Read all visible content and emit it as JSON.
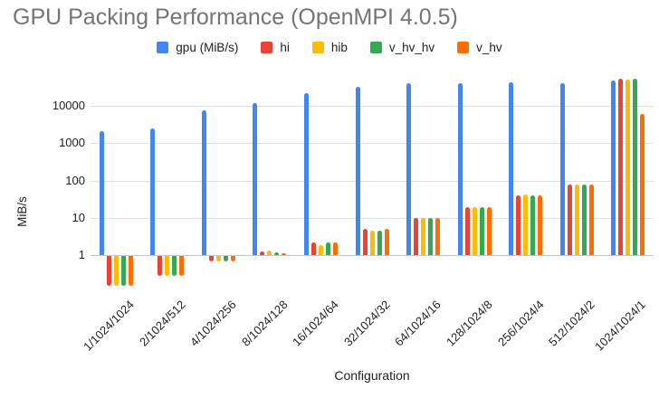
{
  "title": "GPU Packing Performance (OpenMPI 4.0.5)",
  "colors": {
    "title_text": "#757575",
    "axis_text": "#1f1f1f",
    "gridline": "#dcdfe3",
    "baseline": "#c3c7cb",
    "background": "#ffffff"
  },
  "chart_data": {
    "type": "bar",
    "title": "GPU Packing Performance (OpenMPI 4.0.5)",
    "xlabel": "Configuration",
    "ylabel": "MiB/s",
    "y_scale": "log",
    "y_ticks": [
      10000,
      1000,
      100,
      10,
      1
    ],
    "y_tick_labels": [
      "10000",
      "1000",
      "100",
      "10",
      "1"
    ],
    "ylim_log": [
      0.13,
      60000
    ],
    "grid": "horizontal",
    "legend_position": "top",
    "bar_baseline": 1,
    "categories": [
      "1/1024/1024",
      "2/1024/512",
      "4/1024/256",
      "8/1024/128",
      "16/1024/64",
      "32/1024/32",
      "64/1024/16",
      "128/1024/8",
      "256/1024/4",
      "512/1024/2",
      "1024/1024/1"
    ],
    "series": [
      {
        "name": "gpu (MiB/s)",
        "color": "#4285F4",
        "values": [
          2100,
          2500,
          7800,
          12000,
          22000,
          32000,
          40000,
          42000,
          44000,
          41000,
          49000
        ]
      },
      {
        "name": "hi",
        "color": "#EA4335",
        "values": [
          0.16,
          0.3,
          0.7,
          1.25,
          2.2,
          5.0,
          10,
          19,
          39,
          77,
          55000
        ]
      },
      {
        "name": "hib",
        "color": "#FBBC04",
        "values": [
          0.16,
          0.3,
          0.7,
          1.3,
          1.9,
          4.4,
          10,
          19,
          42,
          80,
          50000
        ]
      },
      {
        "name": "v_hv_hv",
        "color": "#34A853",
        "values": [
          0.16,
          0.3,
          0.7,
          1.2,
          2.2,
          4.4,
          10,
          19,
          40,
          78,
          55000
        ]
      },
      {
        "name": "v_hv",
        "color": "#FF6D01",
        "values": [
          0.16,
          0.3,
          0.7,
          1.1,
          2.2,
          5.0,
          10,
          19,
          40,
          80,
          6100
        ]
      }
    ]
  }
}
